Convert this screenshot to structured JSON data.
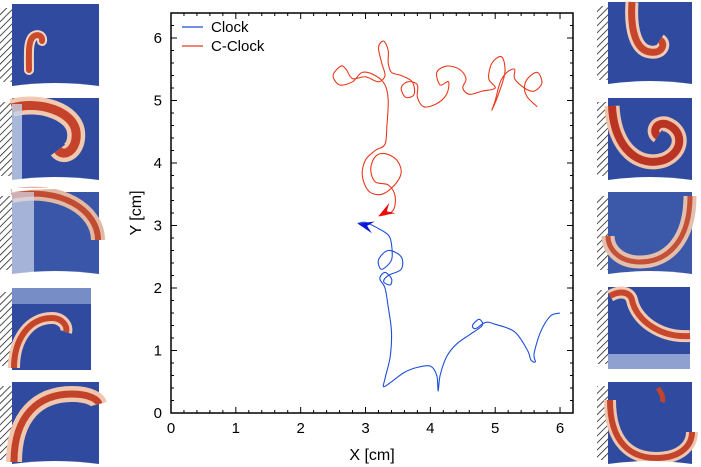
{
  "chart_data": {
    "type": "line",
    "xlabel": "X [cm]",
    "ylabel": "Y [cm]",
    "xlim": [
      0,
      6.2
    ],
    "ylim": [
      0,
      6.4
    ],
    "xticks": [
      "0",
      "1",
      "2",
      "3",
      "4",
      "5",
      "6"
    ],
    "yticks": [
      "0",
      "1",
      "2",
      "3",
      "4",
      "5",
      "6"
    ],
    "grid": false,
    "legend_position": "top-left",
    "series": [
      {
        "name": "Clock",
        "color": "#1f4fd8",
        "arrow_color": "#0a18d6",
        "points": [
          [
            6.0,
            1.6
          ],
          [
            5.85,
            1.55
          ],
          [
            5.7,
            1.3
          ],
          [
            5.6,
            0.95
          ],
          [
            5.62,
            0.82
          ],
          [
            5.55,
            0.85
          ],
          [
            5.5,
            1.0
          ],
          [
            5.3,
            1.3
          ],
          [
            5.0,
            1.42
          ],
          [
            4.85,
            1.45
          ],
          [
            4.7,
            1.35
          ],
          [
            4.65,
            1.4
          ],
          [
            4.75,
            1.5
          ],
          [
            4.8,
            1.4
          ],
          [
            4.6,
            1.25
          ],
          [
            4.4,
            1.1
          ],
          [
            4.25,
            0.9
          ],
          [
            4.15,
            0.6
          ],
          [
            4.12,
            0.35
          ],
          [
            4.1,
            0.6
          ],
          [
            4.0,
            0.75
          ],
          [
            3.8,
            0.73
          ],
          [
            3.6,
            0.65
          ],
          [
            3.4,
            0.5
          ],
          [
            3.28,
            0.42
          ],
          [
            3.3,
            0.55
          ],
          [
            3.38,
            0.9
          ],
          [
            3.4,
            1.3
          ],
          [
            3.35,
            1.7
          ],
          [
            3.3,
            2.0
          ],
          [
            3.22,
            2.15
          ],
          [
            3.3,
            2.25
          ],
          [
            3.4,
            2.15
          ],
          [
            3.38,
            2.05
          ],
          [
            3.28,
            2.1
          ],
          [
            3.35,
            2.2
          ],
          [
            3.55,
            2.3
          ],
          [
            3.55,
            2.5
          ],
          [
            3.35,
            2.6
          ],
          [
            3.2,
            2.45
          ],
          [
            3.25,
            2.3
          ],
          [
            3.4,
            2.45
          ],
          [
            3.4,
            2.7
          ],
          [
            3.35,
            2.85
          ],
          [
            3.2,
            2.95
          ],
          [
            3.0,
            3.05
          ],
          [
            2.88,
            3.03
          ]
        ]
      },
      {
        "name": "C-Clock",
        "color": "#e8391d",
        "arrow_color": "#e80c0c",
        "points": [
          [
            5.65,
            4.9
          ],
          [
            5.5,
            5.05
          ],
          [
            5.45,
            5.2
          ],
          [
            5.5,
            5.35
          ],
          [
            5.65,
            5.45
          ],
          [
            5.72,
            5.28
          ],
          [
            5.6,
            5.15
          ],
          [
            5.45,
            5.2
          ],
          [
            5.3,
            5.35
          ],
          [
            5.3,
            5.5
          ],
          [
            5.18,
            5.45
          ],
          [
            5.08,
            5.3
          ],
          [
            5.0,
            5.0
          ],
          [
            4.95,
            4.85
          ],
          [
            5.05,
            5.1
          ],
          [
            5.15,
            5.45
          ],
          [
            5.1,
            5.7
          ],
          [
            4.95,
            5.6
          ],
          [
            4.9,
            5.35
          ],
          [
            5.0,
            5.2
          ],
          [
            4.8,
            5.15
          ],
          [
            4.6,
            5.1
          ],
          [
            4.5,
            5.2
          ],
          [
            4.55,
            5.35
          ],
          [
            4.45,
            5.5
          ],
          [
            4.25,
            5.55
          ],
          [
            4.1,
            5.45
          ],
          [
            4.15,
            5.25
          ],
          [
            4.28,
            5.3
          ],
          [
            4.25,
            5.1
          ],
          [
            4.1,
            4.95
          ],
          [
            3.9,
            4.9
          ],
          [
            3.8,
            5.05
          ],
          [
            3.8,
            5.25
          ],
          [
            3.65,
            5.3
          ],
          [
            3.55,
            5.2
          ],
          [
            3.62,
            5.05
          ],
          [
            3.75,
            5.1
          ],
          [
            3.72,
            5.3
          ],
          [
            3.55,
            5.4
          ],
          [
            3.4,
            5.45
          ],
          [
            3.35,
            5.6
          ],
          [
            3.35,
            5.8
          ],
          [
            3.28,
            5.95
          ],
          [
            3.2,
            5.85
          ],
          [
            3.25,
            5.6
          ],
          [
            3.3,
            5.4
          ],
          [
            3.2,
            5.3
          ],
          [
            3.0,
            5.38
          ],
          [
            2.8,
            5.35
          ],
          [
            2.7,
            5.5
          ],
          [
            2.62,
            5.55
          ],
          [
            2.5,
            5.4
          ],
          [
            2.6,
            5.25
          ],
          [
            2.8,
            5.3
          ],
          [
            2.95,
            5.45
          ],
          [
            3.15,
            5.4
          ],
          [
            3.3,
            5.25
          ],
          [
            3.35,
            5.0
          ],
          [
            3.33,
            4.6
          ],
          [
            3.3,
            4.3
          ],
          [
            3.15,
            4.2
          ],
          [
            3.0,
            4.05
          ],
          [
            2.95,
            3.8
          ],
          [
            3.05,
            3.55
          ],
          [
            3.25,
            3.5
          ],
          [
            3.45,
            3.65
          ],
          [
            3.55,
            3.85
          ],
          [
            3.48,
            4.05
          ],
          [
            3.3,
            4.15
          ],
          [
            3.15,
            4.1
          ],
          [
            3.08,
            3.9
          ],
          [
            3.15,
            3.7
          ],
          [
            3.35,
            3.65
          ],
          [
            3.45,
            3.5
          ],
          [
            3.45,
            3.3
          ],
          [
            3.38,
            3.2
          ],
          [
            3.2,
            3.15
          ]
        ]
      }
    ]
  }
}
